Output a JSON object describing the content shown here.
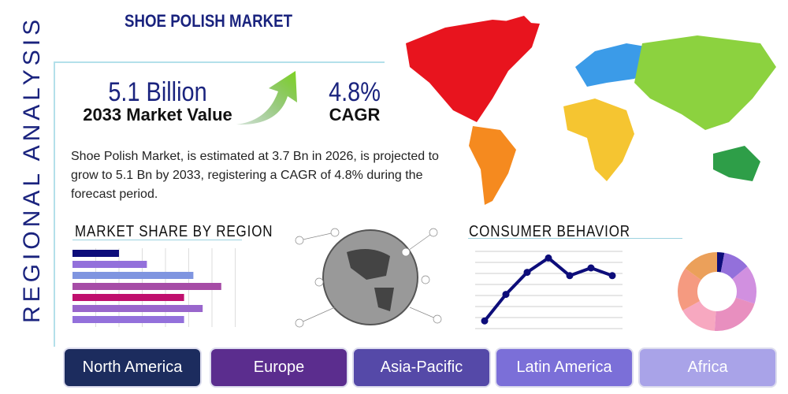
{
  "title": "SHOE POLISH MARKET",
  "side_label": "REGIONAL ANALYSIS",
  "kpi": {
    "value": "5.1 Billion",
    "value_label": "2033 Market Value",
    "cagr": "4.8%",
    "cagr_label": "CAGR"
  },
  "description": "Shoe Polish Market, is estimated at 3.7 Bn in 2026, is projected to grow to 5.1 Bn by 2033, registering a CAGR of 4.8% during the forecast period.",
  "sections": {
    "share": "MARKET SHARE BY REGION",
    "consumer": "CONSUMER BEHAVIOR"
  },
  "regions": [
    {
      "label": "North America",
      "color": "#1c2c5e"
    },
    {
      "label": "Europe",
      "color": "#5b2d8e"
    },
    {
      "label": "Asia-Pacific",
      "color": "#5549a8"
    },
    {
      "label": "Latin America",
      "color": "#7b6fd8"
    },
    {
      "label": "Africa",
      "color": "#a9a3e8"
    }
  ],
  "chart_data": [
    {
      "type": "bar",
      "orientation": "horizontal",
      "values": [
        2,
        3.2,
        5.2,
        6.4,
        4.8,
        5.6,
        4.8
      ],
      "colors": [
        "#0d0d7a",
        "#9370db",
        "#7f95e0",
        "#a64ca6",
        "#c0106e",
        "#9966cc",
        "#9370db"
      ],
      "xlim": [
        0,
        7
      ],
      "grid": true
    },
    {
      "type": "line",
      "values": [
        0.7,
        3.1,
        5.1,
        6.4,
        4.8,
        5.5,
        4.8
      ],
      "ylim": [
        0,
        7
      ],
      "color": "#0d0d7a",
      "grid": true
    },
    {
      "type": "pie",
      "donut": true,
      "values": [
        3,
        11,
        16,
        21,
        16,
        18,
        15
      ],
      "colors": [
        "#0d0d7a",
        "#9370db",
        "#d190e0",
        "#e88fbf",
        "#f7a8c0",
        "#f59a80",
        "#eba05a"
      ]
    }
  ]
}
